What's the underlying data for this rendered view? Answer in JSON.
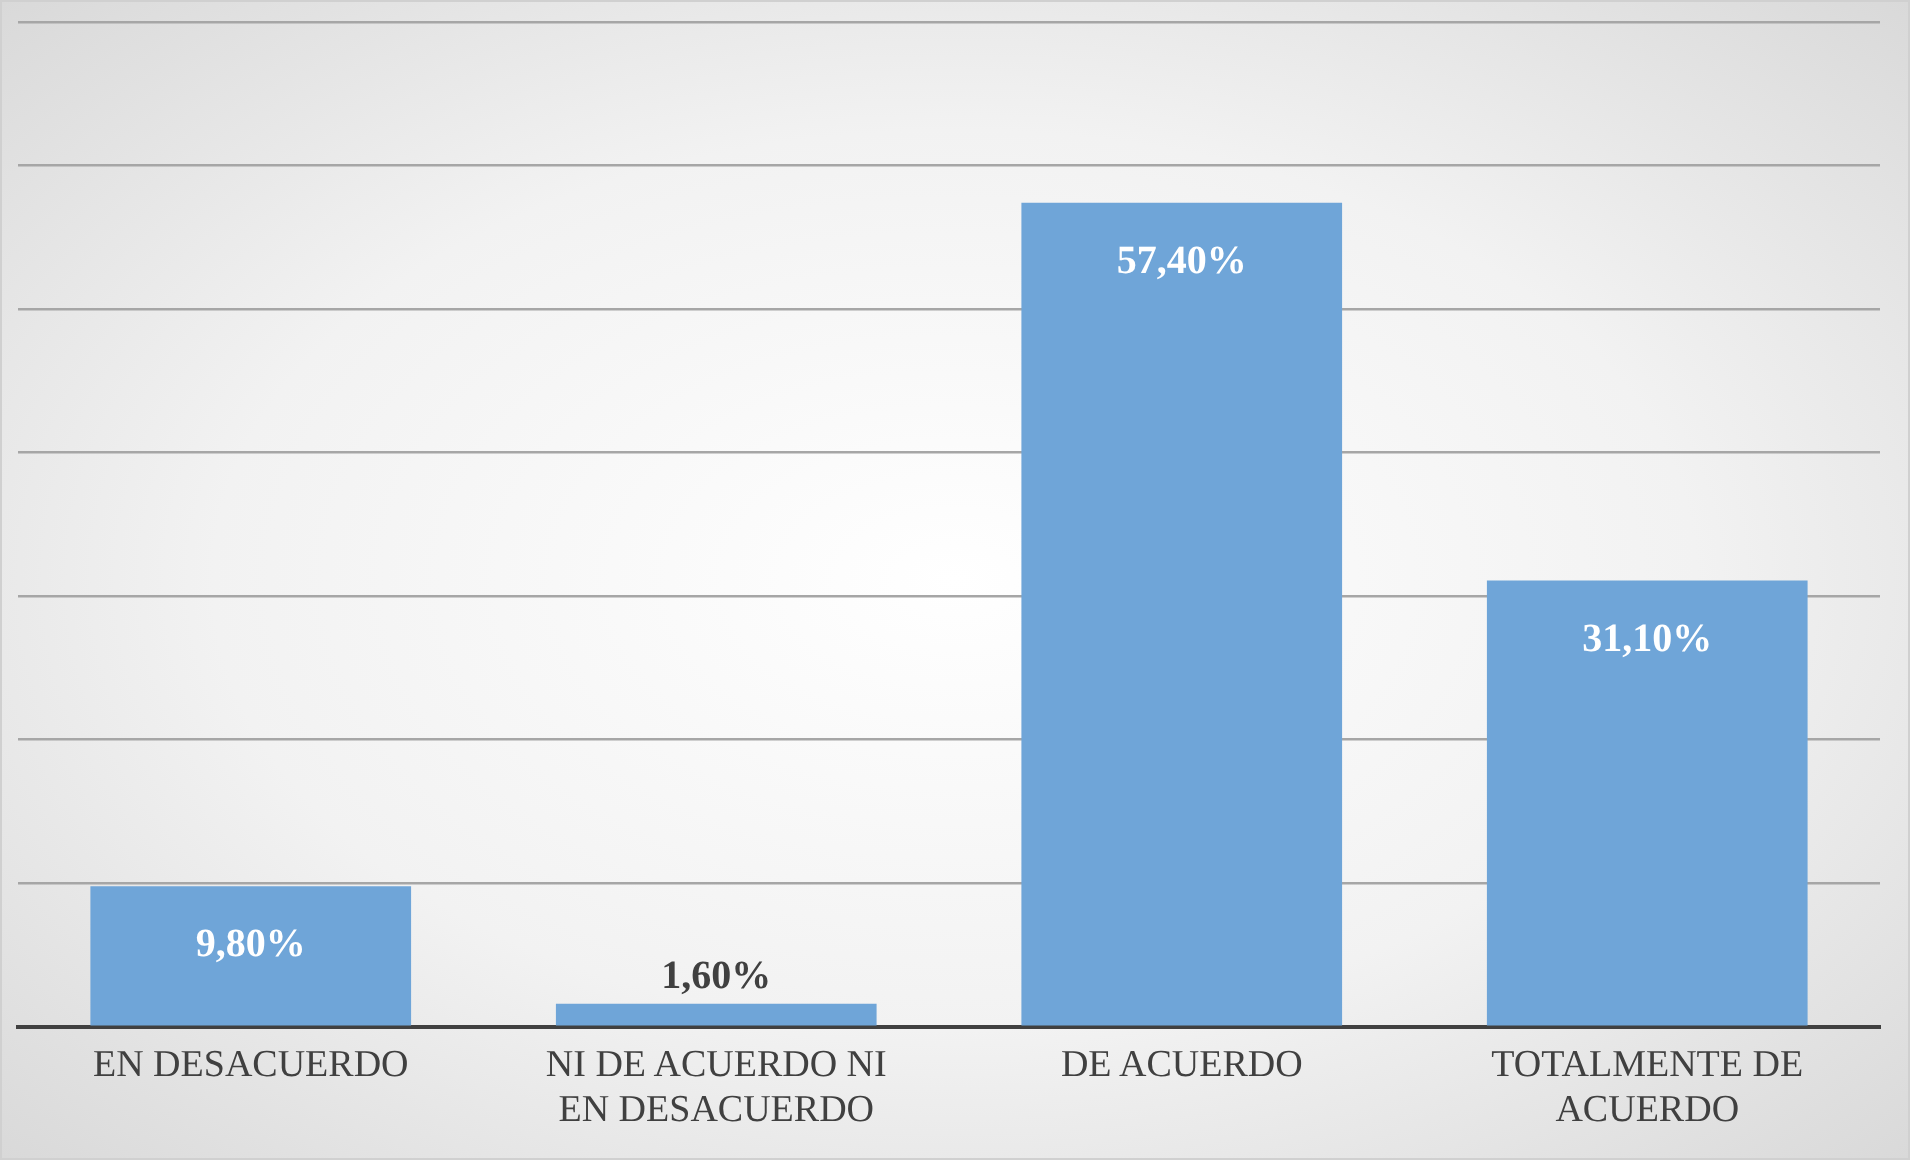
{
  "chart_data": {
    "type": "bar",
    "categories": [
      "EN DESACUERDO",
      "NI DE ACUERDO NI EN DESACUERDO",
      "DE ACUERDO",
      "TOTALMENTE DE ACUERDO"
    ],
    "values": [
      9.8,
      1.6,
      57.4,
      31.1
    ],
    "value_labels": [
      "9,80%",
      "1,60%",
      "57,40%",
      "31,10%"
    ],
    "color": "#6fa5d8",
    "ylim": [
      0,
      70
    ],
    "yticks": [
      {
        "value": 0,
        "label": null
      },
      {
        "value": 10,
        "label": null
      },
      {
        "value": 20,
        "label": null
      },
      {
        "value": 30,
        "label": null
      },
      {
        "value": 40,
        "label": null
      },
      {
        "value": 50,
        "label": null
      },
      {
        "value": 60,
        "label": null
      },
      {
        "value": 70,
        "label": null
      }
    ],
    "grid": "y",
    "tick_labels": "x",
    "legend": false
  }
}
